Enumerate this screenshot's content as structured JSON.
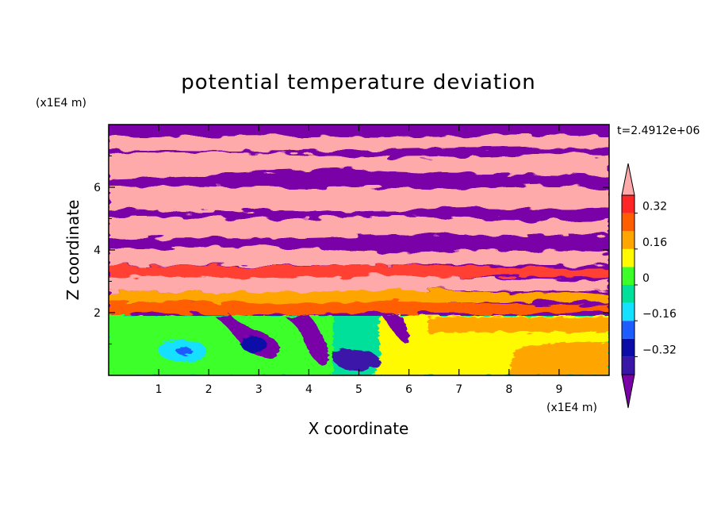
{
  "chart_data": {
    "type": "heatmap",
    "title": "potential temperature deviation",
    "xlabel": "X coordinate",
    "ylabel": "Z coordinate",
    "x_unit": "(x1E4 m)",
    "y_unit": "(x1E4 m)",
    "time_label": "t=2.4912e+06",
    "xlim": [
      0,
      10
    ],
    "ylim": [
      0,
      8
    ],
    "x_ticks": [
      1,
      2,
      3,
      4,
      5,
      6,
      7,
      8,
      9
    ],
    "y_ticks": [
      2,
      4,
      6
    ],
    "colorbar": {
      "levels": [
        -0.4,
        -0.32,
        -0.24,
        -0.16,
        -0.08,
        0,
        0.08,
        0.16,
        0.24,
        0.32,
        0.4
      ],
      "labeled_ticks": [
        "0.32",
        "0.16",
        "0",
        "−0.16",
        "−0.32"
      ],
      "labeled_values": [
        0.32,
        0.16,
        0,
        -0.16,
        -0.32
      ],
      "colors": [
        "#7a00a8",
        "#3a16a8",
        "#0b0ba8",
        "#1d5cff",
        "#14e0ff",
        "#00e09a",
        "#3cff2a",
        "#fffa00",
        "#ffa500",
        "#ff5e00",
        "#ff2626",
        "#ffaaaa"
      ],
      "extend": "both"
    },
    "field_layers": [
      {
        "z_range": [
          7.25,
          8.0
        ],
        "dominant": "purple, pink streaks"
      },
      {
        "z_range": [
          4.5,
          7.25
        ],
        "dominant": "alternating pink and purple bands"
      },
      {
        "z_range": [
          3.3,
          4.5
        ],
        "dominant": "purple/pink with mixed small-scale colors"
      },
      {
        "z_range": [
          2.2,
          3.3
        ],
        "dominant": "pink and red-orange bands"
      },
      {
        "z_range": [
          1.9,
          2.2
        ],
        "dominant": "mixed thin layers"
      },
      {
        "z_range": [
          0.0,
          1.9
        ],
        "dominant": "left green/cyan with purple eddies, right yellow/orange"
      }
    ]
  }
}
